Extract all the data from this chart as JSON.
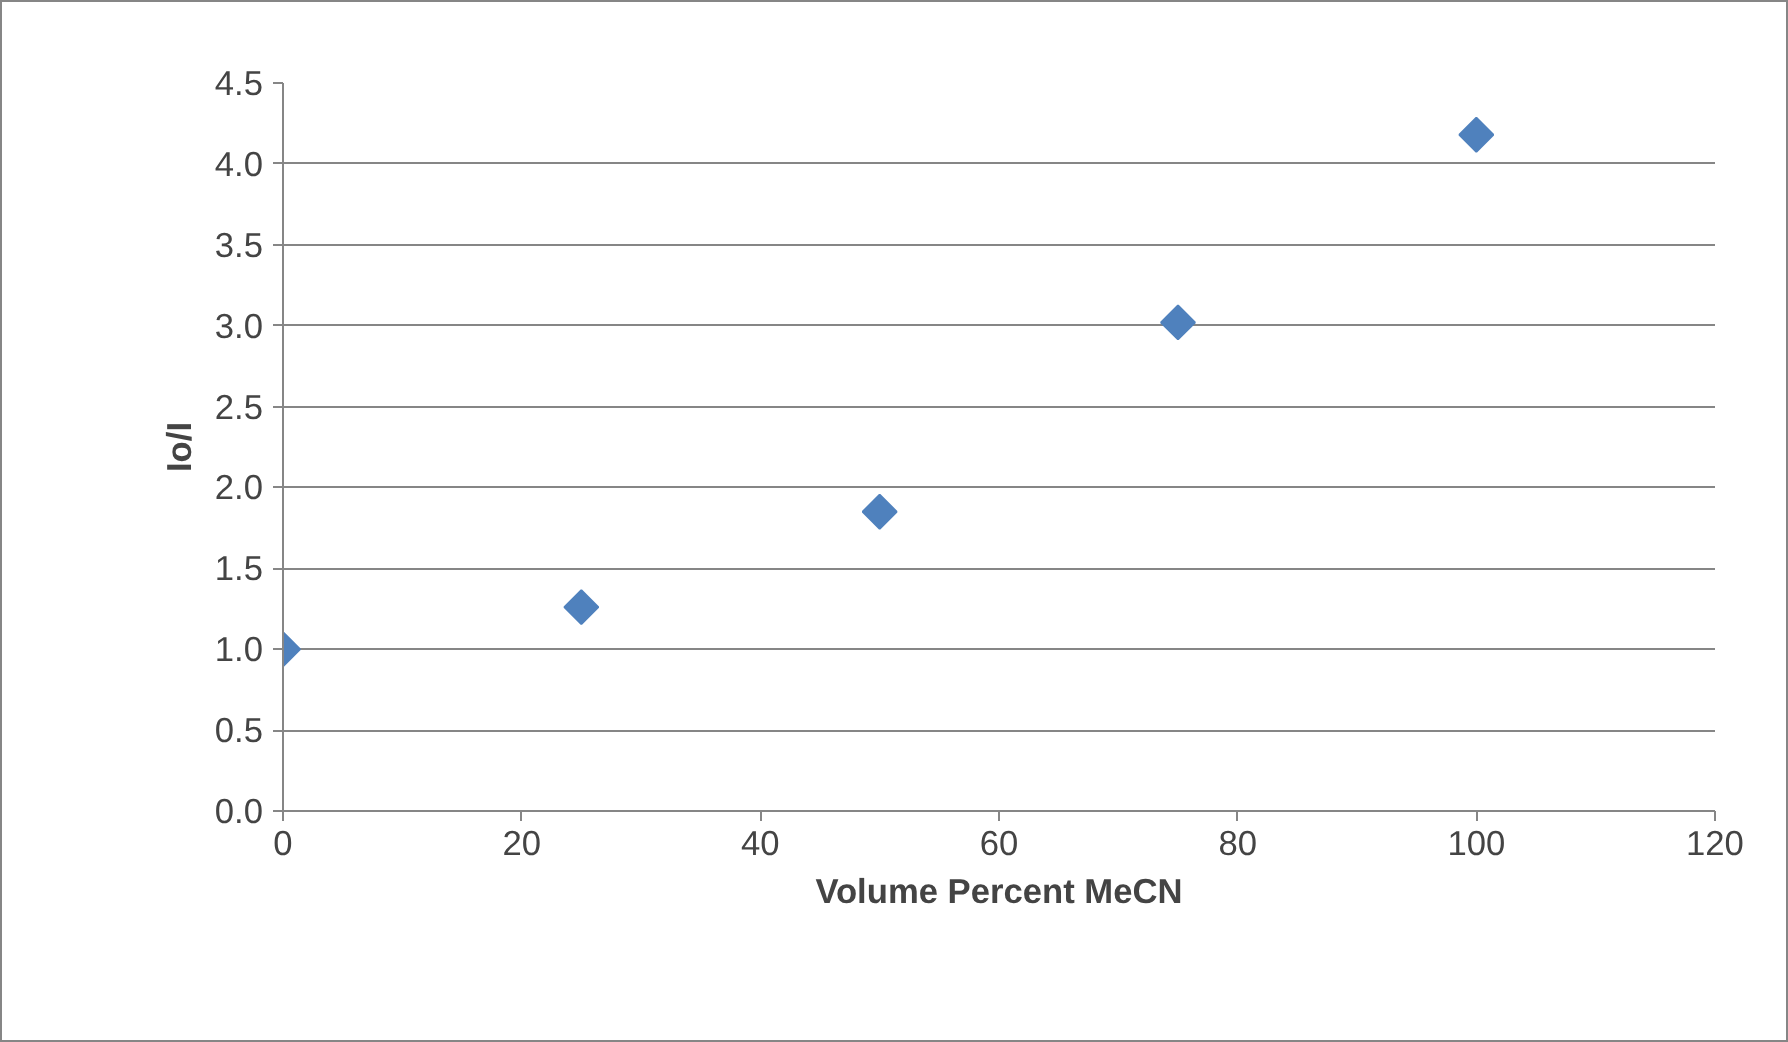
{
  "chart_data": {
    "type": "scatter",
    "xlabel": "Volume Percent MeCN",
    "ylabel": "Io/I",
    "x": [
      0,
      25,
      50,
      75,
      100
    ],
    "series": [
      {
        "color": "#4f81bd",
        "values": [
          1.0,
          1.26,
          1.85,
          3.02,
          4.18
        ]
      }
    ],
    "xlim": [
      0,
      120
    ],
    "xticks": [
      0,
      20,
      40,
      60,
      80,
      100,
      120
    ],
    "ylim": [
      0,
      4.5
    ],
    "yticks": [
      {
        "value": 0,
        "label": "0.0"
      },
      {
        "value": 0.5,
        "label": "0.5"
      },
      {
        "value": 1,
        "label": "1.0"
      },
      {
        "value": 1.5,
        "label": "1.5"
      },
      {
        "value": 2,
        "label": "2.0"
      },
      {
        "value": 2.5,
        "label": "2.5"
      },
      {
        "value": 3,
        "label": "3.0"
      },
      {
        "value": 3.5,
        "label": "3.5"
      },
      {
        "value": 4,
        "label": "4.0"
      },
      {
        "value": 4.5,
        "label": "4.5"
      }
    ],
    "grid": "y",
    "marker": "diamond"
  }
}
